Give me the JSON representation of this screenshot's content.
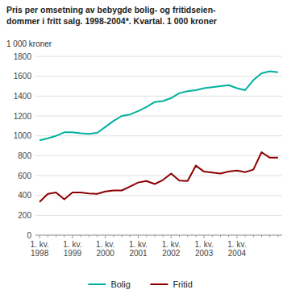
{
  "chart_data": {
    "type": "line",
    "title": "Pris per omsetning av bebygde bolig- og fritidseien-\ndommer i fritt salg. 1998-2004*. Kvartal. 1 000 kroner",
    "ylabel": "1 000 kroner",
    "categories": [
      "1. kv.\n1998",
      null,
      null,
      null,
      "1. kv.\n1999",
      null,
      null,
      null,
      "1. kv.\n2000",
      null,
      null,
      null,
      "1. kv.\n2001",
      null,
      null,
      null,
      "1. kv.\n2002",
      null,
      null,
      null,
      "1. kv.\n2003",
      null,
      null,
      null,
      "1. kv.\n2004",
      null,
      null,
      null,
      null,
      null
    ],
    "series": [
      {
        "name": "Bolig",
        "color": "#00B0A0",
        "values": [
          955,
          975,
          1000,
          1035,
          1035,
          1025,
          1020,
          1030,
          1090,
          1150,
          1200,
          1215,
          1250,
          1290,
          1340,
          1350,
          1380,
          1430,
          1450,
          1460,
          1480,
          1490,
          1500,
          1510,
          1480,
          1460,
          1560,
          1630,
          1650,
          1640
        ]
      },
      {
        "name": "Fritid",
        "color": "#8B0000",
        "values": [
          335,
          415,
          430,
          360,
          430,
          430,
          420,
          415,
          440,
          450,
          450,
          490,
          530,
          545,
          515,
          555,
          620,
          550,
          545,
          700,
          640,
          630,
          620,
          640,
          650,
          635,
          660,
          835,
          780,
          780
        ]
      }
    ],
    "ylim": [
      0,
      1800
    ],
    "yticks": [
      0,
      200,
      400,
      600,
      800,
      1000,
      1200,
      1400,
      1600,
      1800
    ],
    "grid": true,
    "legend": "bottom"
  }
}
